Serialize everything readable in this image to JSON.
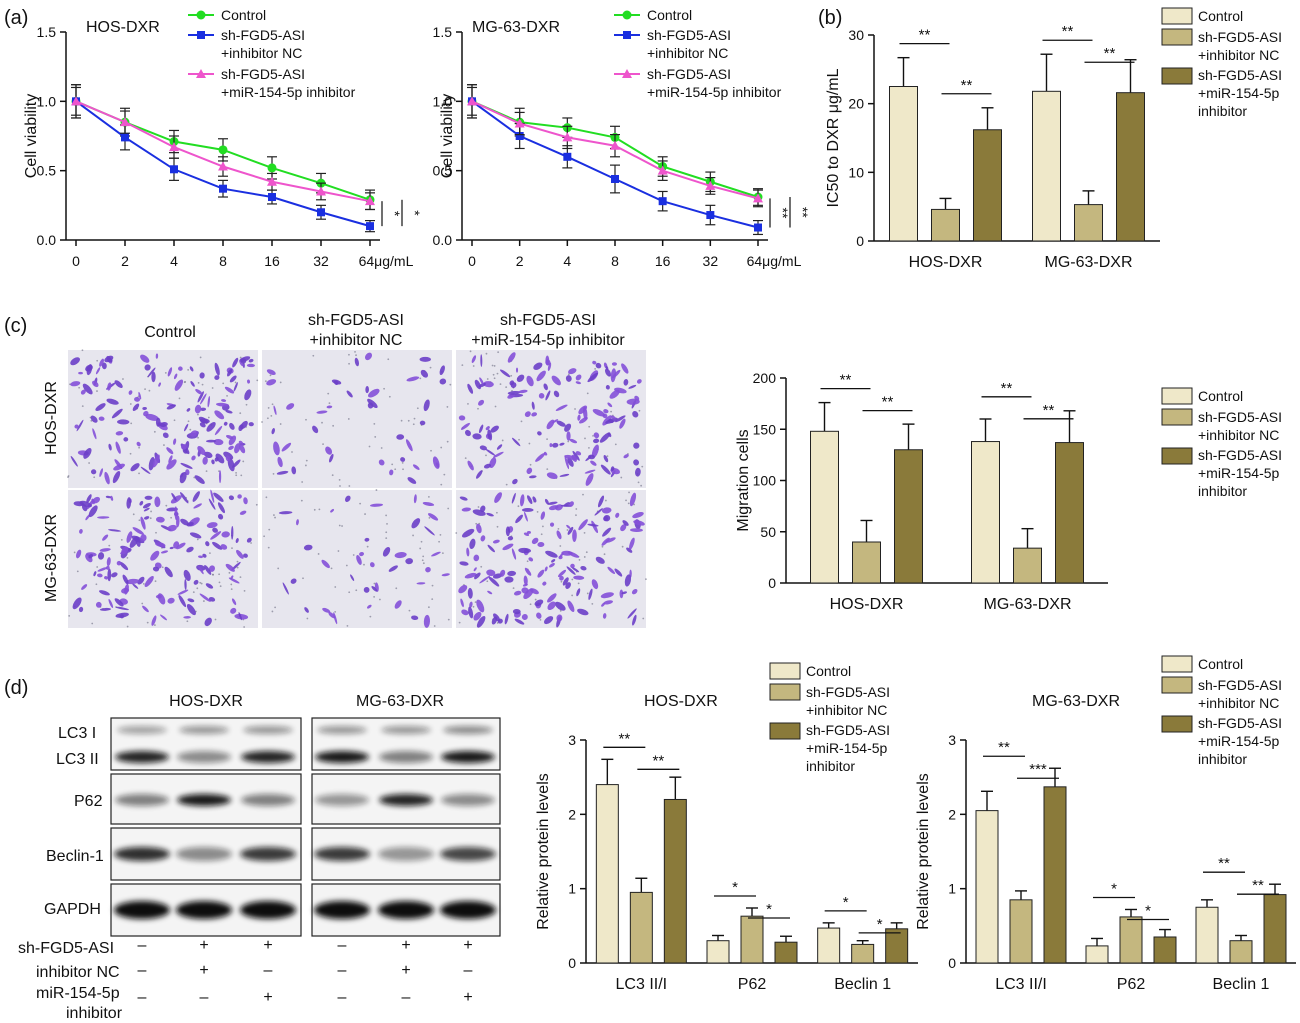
{
  "panel_labels": {
    "a": "(a)",
    "b": "(b)",
    "c": "(c)",
    "d": "(d)"
  },
  "colors": {
    "control_bar": "#efe8c9",
    "nc_bar": "#c4b77f",
    "inhibitor_bar": "#8a7a3a",
    "control_line": "#22dd22",
    "nc_line": "#1a2fe0",
    "inhibitor_line": "#ee55cc"
  },
  "group_legend": {
    "control": "Control",
    "nc_line1": "sh-FGD5-ASI",
    "nc_line2": "+inhibitor NC",
    "inh_line1": "sh-FGD5-ASI",
    "inh_line2": "+miR-154-5p",
    "inh_line3": "inhibitor"
  },
  "line_legend": {
    "control": "Control",
    "nc_line1": "sh-FGD5-ASI",
    "nc_line2": "+inhibitor NC",
    "inh_line1": "sh-FGD5-ASI",
    "inh_line2": "+miR-154-5p inhibitor"
  },
  "chart_data": [
    {
      "id": "a1",
      "type": "line",
      "title": "HOS-DXR",
      "xlabel": "",
      "ylabel": "Cell viability",
      "x": [
        "0",
        "2",
        "4",
        "8",
        "16",
        "32",
        "64μg/mL"
      ],
      "ylim": [
        0,
        1.5
      ],
      "yticks": [
        "0.0",
        "0.5",
        "1.0",
        "1.5"
      ],
      "series": [
        {
          "name": "Control",
          "values": [
            1.0,
            0.85,
            0.71,
            0.65,
            0.52,
            0.41,
            0.29
          ],
          "err": [
            0.12,
            0.1,
            0.08,
            0.08,
            0.08,
            0.07,
            0.07
          ]
        },
        {
          "name": "sh-FGD5-ASI +inhibitor NC",
          "values": [
            1.0,
            0.74,
            0.51,
            0.37,
            0.31,
            0.2,
            0.1
          ],
          "err": [
            0.12,
            0.09,
            0.08,
            0.06,
            0.05,
            0.05,
            0.04
          ]
        },
        {
          "name": "sh-FGD5-ASI +miR-154-5p inhibitor",
          "values": [
            1.0,
            0.85,
            0.67,
            0.53,
            0.42,
            0.35,
            0.28
          ],
          "err": [
            0.1,
            0.08,
            0.08,
            0.07,
            0.06,
            0.06,
            0.06
          ]
        }
      ],
      "significance": [
        "*",
        "*"
      ]
    },
    {
      "id": "a2",
      "type": "line",
      "title": "MG-63-DXR",
      "xlabel": "",
      "ylabel": "Cell viability",
      "x": [
        "0",
        "2",
        "4",
        "8",
        "16",
        "32",
        "64μg/mL"
      ],
      "ylim": [
        0,
        1.5
      ],
      "yticks": [
        "0.0",
        "0.5",
        "1.0",
        "1.5"
      ],
      "series": [
        {
          "name": "Control",
          "values": [
            1.0,
            0.85,
            0.81,
            0.74,
            0.53,
            0.42,
            0.31
          ],
          "err": [
            0.12,
            0.1,
            0.07,
            0.08,
            0.07,
            0.07,
            0.06
          ]
        },
        {
          "name": "sh-FGD5-ASI +inhibitor NC",
          "values": [
            1.0,
            0.75,
            0.6,
            0.44,
            0.28,
            0.18,
            0.09
          ],
          "err": [
            0.12,
            0.09,
            0.08,
            0.1,
            0.07,
            0.07,
            0.05
          ]
        },
        {
          "name": "sh-FGD5-ASI +miR-154-5p inhibitor",
          "values": [
            1.0,
            0.84,
            0.74,
            0.68,
            0.5,
            0.39,
            0.3
          ],
          "err": [
            0.1,
            0.08,
            0.08,
            0.08,
            0.07,
            0.06,
            0.06
          ]
        }
      ],
      "significance": [
        "**",
        "**"
      ]
    },
    {
      "id": "b",
      "type": "bar",
      "title": "",
      "xlabel": "",
      "ylabel": "IC50 to DXR μg/mL",
      "categories": [
        "HOS-DXR",
        "MG-63-DXR"
      ],
      "ylim": [
        0,
        30
      ],
      "yticks": [
        "0",
        "10",
        "20",
        "30"
      ],
      "series": [
        {
          "name": "Control",
          "values": [
            22.5,
            21.8
          ],
          "err": [
            4.2,
            5.4
          ]
        },
        {
          "name": "sh-FGD5-ASI +inhibitor NC",
          "values": [
            4.6,
            5.3
          ],
          "err": [
            1.6,
            2.0
          ]
        },
        {
          "name": "sh-FGD5-ASI +miR-154-5p inhibitor",
          "values": [
            16.2,
            21.6
          ],
          "err": [
            3.2,
            4.8
          ]
        }
      ],
      "significance": [
        "**",
        "**",
        "**",
        "**"
      ]
    },
    {
      "id": "c",
      "type": "bar",
      "title": "",
      "xlabel": "",
      "ylabel": "Migration cells",
      "categories": [
        "HOS-DXR",
        "MG-63-DXR"
      ],
      "ylim": [
        0,
        200
      ],
      "yticks": [
        "0",
        "50",
        "100",
        "150",
        "200"
      ],
      "series": [
        {
          "name": "Control",
          "values": [
            148,
            138
          ],
          "err": [
            28,
            22
          ]
        },
        {
          "name": "sh-FGD5-ASI +inhibitor NC",
          "values": [
            40,
            34
          ],
          "err": [
            21,
            19
          ]
        },
        {
          "name": "sh-FGD5-ASI +miR-154-5p inhibitor",
          "values": [
            130,
            137
          ],
          "err": [
            25,
            31
          ]
        }
      ],
      "significance": [
        "**",
        "**",
        "**",
        "**"
      ]
    },
    {
      "id": "d1",
      "type": "bar",
      "title": "HOS-DXR",
      "xlabel": "",
      "ylabel": "Relative protein levels",
      "categories": [
        "LC3 II/I",
        "P62",
        "Beclin 1"
      ],
      "ylim": [
        0,
        3
      ],
      "yticks": [
        "0",
        "1",
        "2",
        "3"
      ],
      "series": [
        {
          "name": "Control",
          "values": [
            2.4,
            0.3,
            0.47
          ],
          "err": [
            0.34,
            0.07,
            0.07
          ]
        },
        {
          "name": "sh-FGD5-ASI +inhibitor NC",
          "values": [
            0.95,
            0.63,
            0.25
          ],
          "err": [
            0.19,
            0.11,
            0.05
          ]
        },
        {
          "name": "sh-FGD5-ASI +miR-154-5p inhibitor",
          "values": [
            2.2,
            0.28,
            0.46
          ],
          "err": [
            0.3,
            0.08,
            0.08
          ]
        }
      ],
      "significance": [
        "**",
        "**",
        "*",
        "*",
        "*",
        "*"
      ]
    },
    {
      "id": "d2",
      "type": "bar",
      "title": "MG-63-DXR",
      "xlabel": "",
      "ylabel": "Relative protein levels",
      "categories": [
        "LC3 II/I",
        "P62",
        "Beclin 1"
      ],
      "ylim": [
        0,
        3
      ],
      "yticks": [
        "0",
        "1",
        "2",
        "3"
      ],
      "series": [
        {
          "name": "Control",
          "values": [
            2.05,
            0.23,
            0.75
          ],
          "err": [
            0.26,
            0.1,
            0.1
          ]
        },
        {
          "name": "sh-FGD5-ASI +inhibitor NC",
          "values": [
            0.85,
            0.62,
            0.3
          ],
          "err": [
            0.12,
            0.1,
            0.07
          ]
        },
        {
          "name": "sh-FGD5-ASI +miR-154-5p inhibitor",
          "values": [
            2.37,
            0.35,
            0.92
          ],
          "err": [
            0.25,
            0.1,
            0.14
          ]
        }
      ],
      "significance": [
        "**",
        "***",
        "*",
        "*",
        "**",
        "**"
      ]
    }
  ],
  "migration_images": {
    "columns": [
      "Control",
      "sh-FGD5-ASI",
      "+inhibitor NC",
      "sh-FGD5-ASI",
      "+miR-154-5p inhibitor"
    ],
    "rows": [
      "HOS-DXR",
      "MG-63-DXR"
    ]
  },
  "western_blot": {
    "column_titles": [
      "HOS-DXR",
      "MG-63-DXR"
    ],
    "band_labels": [
      "LC3 I",
      "LC3 II",
      "P62",
      "Beclin-1",
      "GAPDH"
    ],
    "conditions": [
      {
        "label": "sh-FGD5-ASI",
        "signs": [
          "–",
          "+",
          "+",
          "–",
          "+",
          "+"
        ]
      },
      {
        "label": "inhibitor NC",
        "signs": [
          "–",
          "+",
          "–",
          "–",
          "+",
          "–"
        ]
      },
      {
        "label": "miR-154-5p",
        "label2": "inhibitor",
        "signs": [
          "–",
          "–",
          "+",
          "–",
          "–",
          "+"
        ]
      }
    ]
  }
}
